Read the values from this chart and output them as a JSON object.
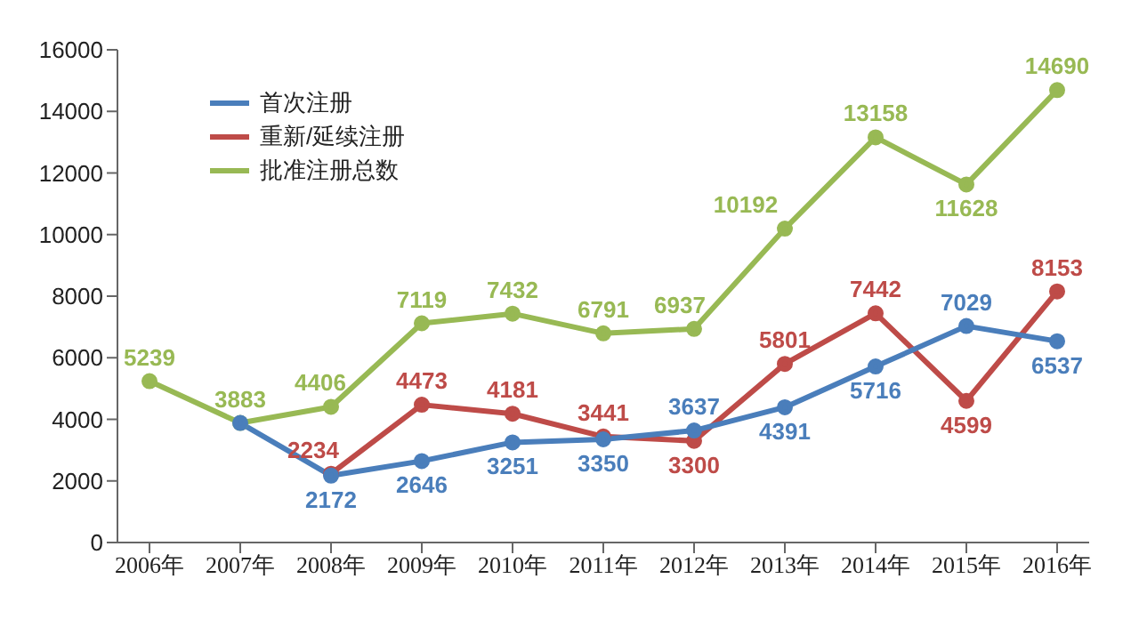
{
  "chart_data": {
    "type": "line",
    "categories": [
      "2006年",
      "2007年",
      "2008年",
      "2009年",
      "2010年",
      "2011年",
      "2012年",
      "2013年",
      "2014年",
      "2015年",
      "2016年"
    ],
    "series": [
      {
        "name": "首次注册",
        "color": "#4a7ebb",
        "values": [
          null,
          3883,
          2172,
          2646,
          3251,
          3350,
          3637,
          4391,
          5716,
          7029,
          6537
        ],
        "value_labels": [
          null,
          null,
          "2172",
          "2646",
          "3251",
          "3350",
          "3637",
          "4391",
          "5716",
          "7029",
          "6537"
        ]
      },
      {
        "name": "重新/延续注册",
        "color": "#be4b48",
        "values": [
          null,
          null,
          2234,
          4473,
          4181,
          3441,
          3300,
          5801,
          7442,
          4599,
          8153
        ],
        "value_labels": [
          null,
          null,
          "2234",
          "4473",
          "4181",
          "3441",
          "3300",
          "5801",
          "7442",
          "4599",
          "8153"
        ]
      },
      {
        "name": "批准注册总数",
        "color": "#98b954",
        "values": [
          5239,
          3883,
          4406,
          7119,
          7432,
          6791,
          6937,
          10192,
          13158,
          11628,
          14690
        ],
        "value_labels": [
          "5239",
          "3883",
          "4406",
          "7119",
          "7432",
          "6791",
          "6937",
          "10192",
          "13158",
          "11628",
          "14690"
        ]
      }
    ],
    "ylim": [
      0,
      16000
    ],
    "yticks": [
      0,
      2000,
      4000,
      6000,
      8000,
      10000,
      12000,
      14000,
      16000
    ],
    "grid": false,
    "legend": "top left",
    "marker": "circle",
    "line_style": "solid"
  }
}
